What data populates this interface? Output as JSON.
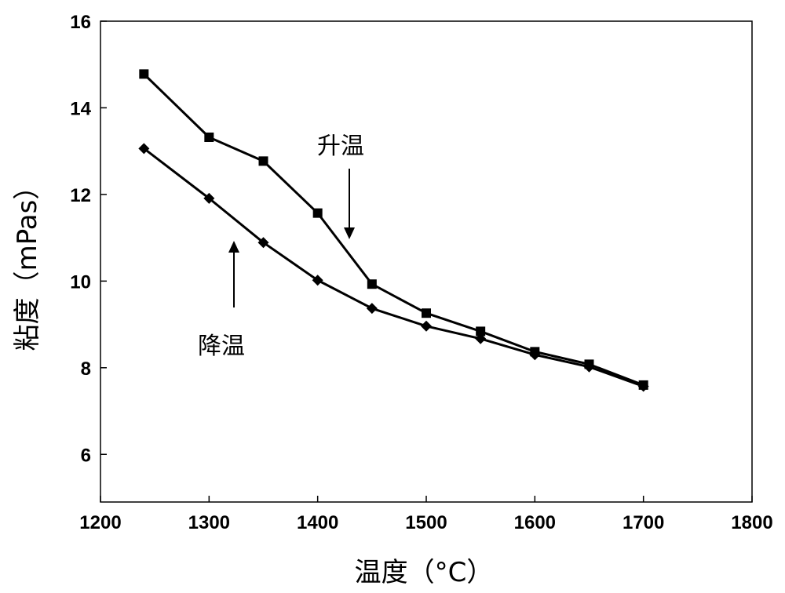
{
  "chart_data": {
    "type": "line",
    "title": "",
    "xlabel": "温度（°C）",
    "ylabel": "粘度（mPas）",
    "xlim": [
      1200,
      1800
    ],
    "ylim": [
      4.9,
      16
    ],
    "xticks": [
      1200,
      1300,
      1400,
      1500,
      1600,
      1700,
      1800
    ],
    "yticks": [
      6,
      8,
      10,
      12,
      14,
      16
    ],
    "grid": false,
    "series": [
      {
        "name": "升温",
        "marker": "square",
        "x": [
          1240,
          1300,
          1350,
          1400,
          1450,
          1500,
          1550,
          1600,
          1650,
          1700
        ],
        "y": [
          14.78,
          13.32,
          12.77,
          11.57,
          9.93,
          9.26,
          8.84,
          8.37,
          8.08,
          7.6
        ]
      },
      {
        "name": "降温",
        "marker": "diamond",
        "x": [
          1240,
          1300,
          1350,
          1400,
          1450,
          1500,
          1550,
          1600,
          1650,
          1700
        ],
        "y": [
          13.06,
          11.91,
          10.89,
          10.02,
          9.37,
          8.96,
          8.67,
          8.3,
          8.02,
          7.57
        ]
      }
    ],
    "annotations": [
      {
        "text": "升温",
        "series": "升温"
      },
      {
        "text": "降温",
        "series": "降温"
      }
    ]
  }
}
